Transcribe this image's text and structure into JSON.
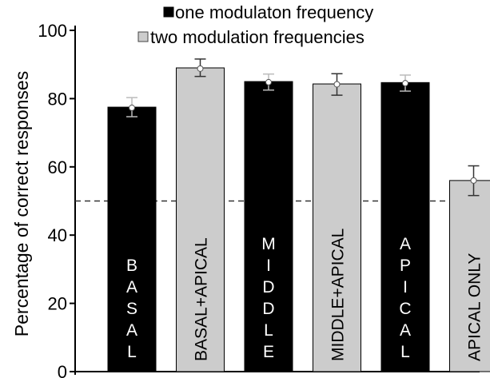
{
  "chart_data": {
    "type": "bar",
    "ylabel": "Percentage of correct responses",
    "ylim": [
      0,
      100
    ],
    "yticks": [
      "0",
      "20",
      "40",
      "60",
      "80",
      "100"
    ],
    "chance_level": 50,
    "legend": [
      {
        "label": "one modulaton frequency",
        "color": "#000000"
      },
      {
        "label": "two modulation frequencies",
        "color": "#cccccc"
      }
    ],
    "categories": [
      "BASAL",
      "BASAL+APICAL",
      "MIDDLE",
      "MIDDLE+APICAL",
      "APICAL",
      "APICAL ONLY"
    ],
    "bars": [
      {
        "label": "BASAL",
        "value": 77.5,
        "mean": 77.3,
        "err_low": 74.7,
        "err_high": 80.3,
        "color": "#000000",
        "label_color": "#ffffff",
        "label_style": "stacked",
        "series": "one modulaton frequency"
      },
      {
        "label": "BASAL+APICAL",
        "value": 89,
        "mean": 88.8,
        "err_low": 86.5,
        "err_high": 91.6,
        "color": "#cccccc",
        "label_color": "#000000",
        "label_style": "rotated",
        "series": "two modulation frequencies"
      },
      {
        "label": "MIDDLE",
        "value": 85,
        "mean": 84.8,
        "err_low": 82.5,
        "err_high": 87.2,
        "color": "#000000",
        "label_color": "#ffffff",
        "label_style": "stacked",
        "series": "one modulaton frequency"
      },
      {
        "label": "MIDDLE+APICAL",
        "value": 84.3,
        "mean": 84.2,
        "err_low": 81.0,
        "err_high": 87.3,
        "color": "#cccccc",
        "label_color": "#000000",
        "label_style": "rotated",
        "series": "two modulation frequencies"
      },
      {
        "label": "APICAL",
        "value": 84.7,
        "mean": 84.5,
        "err_low": 82.2,
        "err_high": 86.9,
        "color": "#000000",
        "label_color": "#ffffff",
        "label_style": "stacked",
        "series": "one modulaton frequency"
      },
      {
        "label": "APICAL ONLY",
        "value": 56,
        "mean": 56,
        "err_low": 51.6,
        "err_high": 60.3,
        "color": "#cccccc",
        "label_color": "#000000",
        "label_style": "rotated",
        "series": "two modulation frequencies"
      }
    ]
  }
}
